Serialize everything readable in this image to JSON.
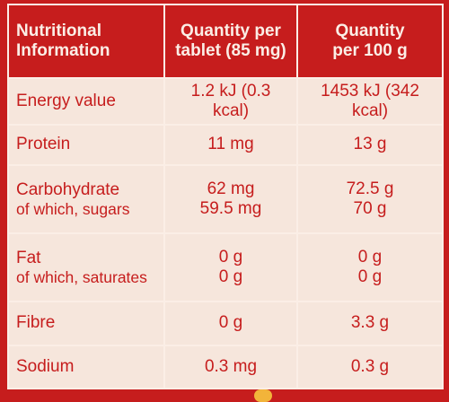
{
  "header": {
    "col1": [
      "Nutritional",
      "Information"
    ],
    "col2": [
      "Quantity per",
      "tablet (85 mg)"
    ],
    "col3": [
      "Quantity",
      "per 100 g"
    ]
  },
  "rows": [
    {
      "labels": [
        "Energy value"
      ],
      "per_tablet": [
        "1.2 kJ (0.3 kcal)"
      ],
      "per_100g": [
        "1453 kJ (342 kcal)"
      ]
    },
    {
      "labels": [
        "Protein"
      ],
      "per_tablet": [
        "11 mg"
      ],
      "per_100g": [
        "13 g"
      ]
    },
    {
      "labels": [
        "Carbohydrate",
        "of which, sugars"
      ],
      "per_tablet": [
        "62 mg",
        "59.5 mg"
      ],
      "per_100g": [
        "72.5 g",
        "70 g"
      ]
    },
    {
      "labels": [
        "Fat",
        "of which, saturates"
      ],
      "per_tablet": [
        "0 g",
        "0 g"
      ],
      "per_100g": [
        "0 g",
        "0 g"
      ]
    },
    {
      "labels": [
        "Fibre"
      ],
      "per_tablet": [
        "0 g"
      ],
      "per_100g": [
        "3.3 g"
      ]
    },
    {
      "labels": [
        "Sodium"
      ],
      "per_tablet": [
        "0.3 mg"
      ],
      "per_100g": [
        "0.3 g"
      ]
    }
  ],
  "colors": {
    "background_red": "#c61d1d",
    "cell_cream": "#f6e6dc",
    "border_cream": "#fbeee6"
  }
}
